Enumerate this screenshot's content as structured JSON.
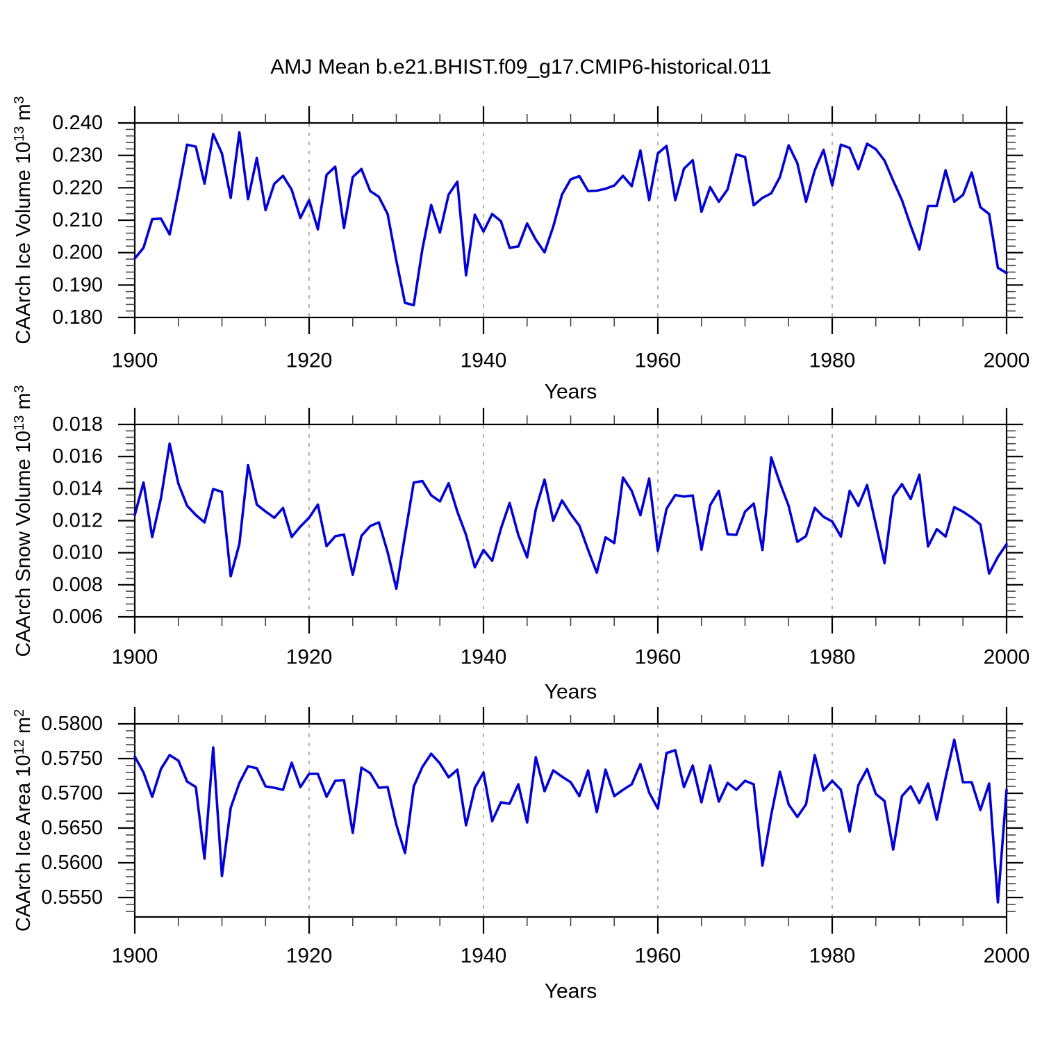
{
  "title": "AMJ Mean b.e21.BHIST.f09_g17.CMIP6-historical.011",
  "line_color": "#0202d6",
  "axis_color": "#000000",
  "gridline_color": "#909090",
  "x": {
    "label": "Years",
    "range": [
      1900,
      2000
    ],
    "ticks": [
      1900,
      1920,
      1940,
      1960,
      1980,
      2000
    ],
    "tick_labels": [
      "1900",
      "1920",
      "1940",
      "1960",
      "1980",
      "2000"
    ],
    "minor_step": 5,
    "gridlines": [
      1920,
      1940,
      1960,
      1980
    ]
  },
  "chart_data": [
    {
      "type": "line",
      "ylabel_text": "CAArch Ice Volume 10^13 m^3",
      "ylabel_segments": [
        {
          "t": "CAArch Ice Volume 10"
        },
        {
          "t": "13",
          "sup": true
        },
        {
          "t": " m"
        },
        {
          "t": "3",
          "sup": true
        }
      ],
      "xlabel": "Years",
      "ylim": [
        0.18,
        0.24
      ],
      "ytick_values": [
        0.18,
        0.19,
        0.2,
        0.21,
        0.22,
        0.23,
        0.24
      ],
      "ytick_labels": [
        "0.180",
        "0.190",
        "0.200",
        "0.210",
        "0.220",
        "0.230",
        "0.240"
      ],
      "y_minor_step": 0.002,
      "grid": false,
      "values": [
        0.1982,
        0.2015,
        0.2103,
        0.2105,
        0.2056,
        0.219,
        0.2333,
        0.2327,
        0.2213,
        0.2366,
        0.2306,
        0.2169,
        0.2371,
        0.2165,
        0.2292,
        0.2131,
        0.2212,
        0.2237,
        0.2194,
        0.2107,
        0.2162,
        0.2072,
        0.224,
        0.2265,
        0.2076,
        0.2233,
        0.2258,
        0.219,
        0.2172,
        0.2119,
        0.1976,
        0.1845,
        0.1838,
        0.2012,
        0.2147,
        0.2062,
        0.2179,
        0.2219,
        0.193,
        0.2117,
        0.2065,
        0.2119,
        0.2097,
        0.2015,
        0.2019,
        0.209,
        0.204,
        0.2001,
        0.208,
        0.2179,
        0.2226,
        0.2236,
        0.219,
        0.2191,
        0.2197,
        0.2207,
        0.2237,
        0.2205,
        0.2315,
        0.2162,
        0.2306,
        0.2329,
        0.2162,
        0.2259,
        0.2285,
        0.2126,
        0.2202,
        0.2157,
        0.2195,
        0.2303,
        0.2295,
        0.2146,
        0.2169,
        0.2183,
        0.2233,
        0.2331,
        0.2276,
        0.2157,
        0.2254,
        0.2317,
        0.2207,
        0.2333,
        0.2323,
        0.2257,
        0.2336,
        0.2319,
        0.2284,
        0.2222,
        0.2162,
        0.2083,
        0.201,
        0.2144,
        0.2144,
        0.2254,
        0.2157,
        0.2178,
        0.2247,
        0.214,
        0.2119,
        0.1953,
        0.1937
      ]
    },
    {
      "type": "line",
      "ylabel_text": "CAArch Snow Volume 10^13 m^3",
      "ylabel_segments": [
        {
          "t": "CAArch Snow Volume 10"
        },
        {
          "t": "13",
          "sup": true
        },
        {
          "t": " m"
        },
        {
          "t": "3",
          "sup": true
        }
      ],
      "xlabel": "Years",
      "ylim": [
        0.006,
        0.018
      ],
      "ytick_values": [
        0.006,
        0.008,
        0.01,
        0.012,
        0.014,
        0.016,
        0.018
      ],
      "ytick_labels": [
        "0.006",
        "0.008",
        "0.010",
        "0.012",
        "0.014",
        "0.016",
        "0.018"
      ],
      "y_minor_step": 0.0004,
      "grid": false,
      "values": [
        0.01235,
        0.01438,
        0.01098,
        0.0134,
        0.0168,
        0.0143,
        0.01293,
        0.01235,
        0.01189,
        0.01397,
        0.0138,
        0.00853,
        0.01055,
        0.01546,
        0.013,
        0.01257,
        0.01218,
        0.01279,
        0.01098,
        0.01163,
        0.01218,
        0.013,
        0.01041,
        0.01103,
        0.01113,
        0.00863,
        0.01105,
        0.01166,
        0.01189,
        0.01004,
        0.00776,
        0.01108,
        0.01438,
        0.01447,
        0.01358,
        0.0132,
        0.01433,
        0.01256,
        0.01111,
        0.00909,
        0.01017,
        0.0095,
        0.0115,
        0.0131,
        0.0111,
        0.00971,
        0.0127,
        0.01456,
        0.012,
        0.01326,
        0.01241,
        0.01169,
        0.01017,
        0.00876,
        0.01096,
        0.0106,
        0.01469,
        0.01386,
        0.01234,
        0.01462,
        0.01012,
        0.01273,
        0.0136,
        0.0135,
        0.01357,
        0.01019,
        0.01296,
        0.01386,
        0.01115,
        0.01111,
        0.01256,
        0.01306,
        0.01017,
        0.01595,
        0.01436,
        0.01292,
        0.01068,
        0.01104,
        0.0128,
        0.01224,
        0.01195,
        0.01101,
        0.01386,
        0.01292,
        0.01422,
        0.01176,
        0.00935,
        0.0135,
        0.01428,
        0.01335,
        0.01487,
        0.01039,
        0.01147,
        0.01101,
        0.01284,
        0.01256,
        0.0122,
        0.01176,
        0.0087,
        0.00974,
        0.01053
      ]
    },
    {
      "type": "line",
      "ylabel_text": "CAArch Ice Area 10^12 m^2",
      "ylabel_segments": [
        {
          "t": "CAArch Ice Area 10"
        },
        {
          "t": "12",
          "sup": true
        },
        {
          "t": " m"
        },
        {
          "t": "2",
          "sup": true
        }
      ],
      "xlabel": "Years",
      "ylim": [
        0.5522,
        0.58
      ],
      "ytick_values": [
        0.555,
        0.56,
        0.565,
        0.57,
        0.575,
        0.58
      ],
      "ytick_labels": [
        "0.5550",
        "0.5600",
        "0.5650",
        "0.5700",
        "0.5750",
        "0.5800"
      ],
      "y_minor_step": 0.001,
      "grid": false,
      "values": [
        0.5753,
        0.573,
        0.5695,
        0.5735,
        0.5755,
        0.5747,
        0.5717,
        0.5709,
        0.5606,
        0.5766,
        0.5581,
        0.5679,
        0.5715,
        0.5739,
        0.5736,
        0.571,
        0.5708,
        0.5705,
        0.5744,
        0.5709,
        0.5728,
        0.5728,
        0.5695,
        0.5718,
        0.5719,
        0.5643,
        0.5737,
        0.5729,
        0.5708,
        0.5709,
        0.5655,
        0.5614,
        0.571,
        0.5738,
        0.5757,
        0.5743,
        0.5723,
        0.5734,
        0.5654,
        0.5708,
        0.573,
        0.566,
        0.5687,
        0.5685,
        0.5713,
        0.5658,
        0.5752,
        0.5703,
        0.5733,
        0.5724,
        0.5716,
        0.5696,
        0.5733,
        0.5673,
        0.5734,
        0.5696,
        0.5705,
        0.5713,
        0.5742,
        0.5701,
        0.5678,
        0.5758,
        0.5762,
        0.5709,
        0.574,
        0.5687,
        0.574,
        0.5688,
        0.5715,
        0.5705,
        0.5718,
        0.5713,
        0.5596,
        0.5669,
        0.5731,
        0.5684,
        0.5666,
        0.5684,
        0.5755,
        0.5704,
        0.5718,
        0.5705,
        0.5645,
        0.5712,
        0.5735,
        0.5699,
        0.5689,
        0.5619,
        0.5696,
        0.571,
        0.5686,
        0.5714,
        0.5662,
        0.5722,
        0.5777,
        0.5716,
        0.5716,
        0.5676,
        0.5714,
        0.5543,
        0.5705
      ]
    }
  ]
}
